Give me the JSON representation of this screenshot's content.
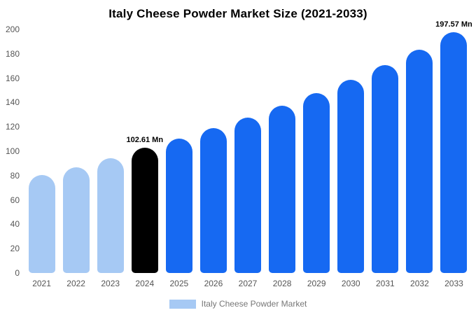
{
  "chart_data": {
    "type": "bar",
    "title": "Italy Cheese Powder Market Size (2021-2033)",
    "categories": [
      "2021",
      "2022",
      "2023",
      "2024",
      "2025",
      "2026",
      "2027",
      "2028",
      "2029",
      "2030",
      "2031",
      "2032",
      "2033"
    ],
    "values": [
      80.5,
      87,
      94,
      102.61,
      110.4,
      118.7,
      127.6,
      137.3,
      147.6,
      158.8,
      170.7,
      183.6,
      197.57
    ],
    "bar_colors": [
      "#a6c9f4",
      "#a6c9f4",
      "#a6c9f4",
      "#000000",
      "#1669f2",
      "#1669f2",
      "#1669f2",
      "#1669f2",
      "#1669f2",
      "#1669f2",
      "#1669f2",
      "#1669f2",
      "#1669f2"
    ],
    "annotations": [
      {
        "index": 3,
        "text": "102.61 Mn"
      },
      {
        "index": 12,
        "text": "197.57 Mn"
      }
    ],
    "ylim": [
      0,
      200
    ],
    "yticks": [
      0,
      20,
      40,
      60,
      80,
      100,
      120,
      140,
      160,
      180,
      200
    ],
    "xlabel": "",
    "ylabel": "",
    "grid": false,
    "legend": "Italy Cheese Powder Market",
    "legend_swatch_color": "#a6c9f4",
    "legend_position": "bottom",
    "colors": {
      "historical_bar": "#a6c9f4",
      "highlight_bar": "#000000",
      "forecast_bar": "#1669f2",
      "background": "#ffffff"
    }
  }
}
